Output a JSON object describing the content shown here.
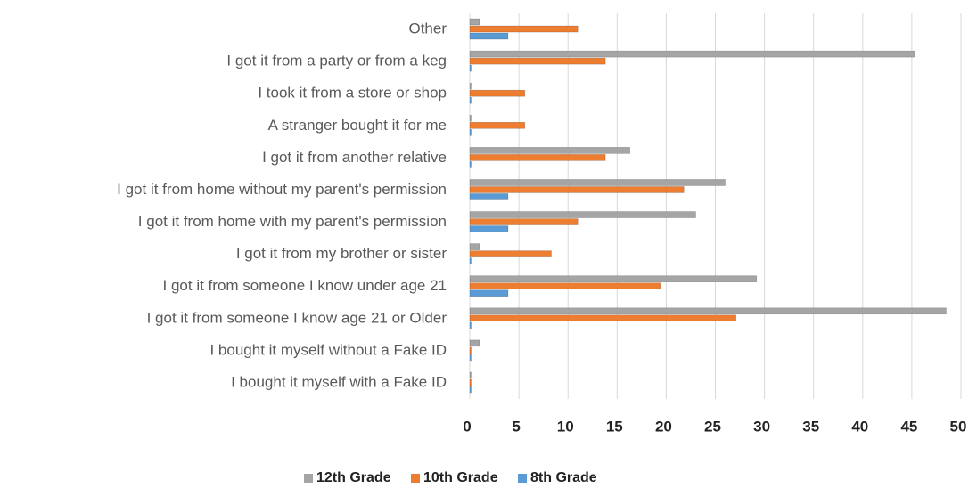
{
  "chart_data": {
    "type": "hbar",
    "categories": [
      "Other",
      "I got it from a party or from a keg",
      "I took it from a store or shop",
      "A stranger bought it for me",
      "I got it from another relative",
      "I got it from home without my parent's permission",
      "I got it from home with my parent's permission",
      "I got it from my brother or sister",
      "I got it from someone I know under age 21",
      "I got it from someone I know age 21 or Older",
      "I bought it myself without a Fake ID",
      "I bought it myself with a Fake ID"
    ],
    "series": [
      {
        "name": "12th Grade",
        "color": "#a5a5a5",
        "values": [
          1,
          45.3,
          0,
          0,
          16.3,
          26,
          23,
          1,
          29.2,
          48.5,
          1,
          0
        ]
      },
      {
        "name": "10th Grade",
        "color": "#ed7d31",
        "values": [
          11,
          13.8,
          5.6,
          5.6,
          13.8,
          21.8,
          11,
          8.3,
          19.4,
          27.1,
          0,
          0
        ]
      },
      {
        "name": "8th Grade",
        "color": "#5b9bd5",
        "values": [
          3.9,
          0,
          0,
          0,
          0,
          3.9,
          3.9,
          0,
          3.9,
          0,
          0,
          0
        ]
      }
    ],
    "xlim": [
      0,
      50
    ],
    "xticks": [
      0,
      5,
      10,
      15,
      20,
      25,
      30,
      35,
      40,
      45,
      50
    ],
    "grid": true,
    "legend": "bottom"
  }
}
